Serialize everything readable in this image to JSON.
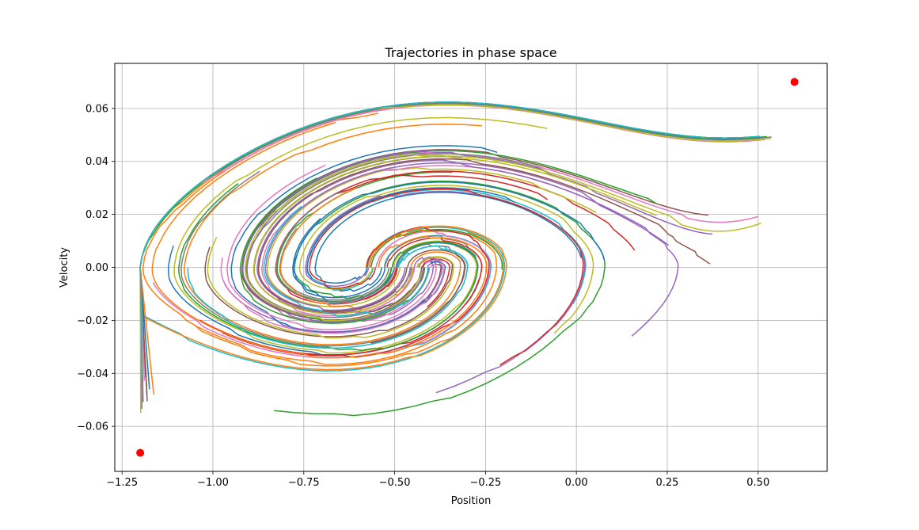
{
  "chart_data": {
    "type": "line",
    "title": "Trajectories in phase space",
    "xlabel": "Position",
    "ylabel": "Velocity",
    "xlim": [
      -1.27,
      0.69
    ],
    "ylim": [
      -0.077,
      0.077
    ],
    "grid": true,
    "xticks": [
      -1.25,
      -1.0,
      -0.75,
      -0.5,
      -0.25,
      0.0,
      0.25,
      0.5
    ],
    "xtick_labels": [
      "−1.25",
      "−1.00",
      "−0.75",
      "−0.50",
      "−0.25",
      "0.00",
      "0.25",
      "0.50"
    ],
    "yticks": [
      -0.06,
      -0.04,
      -0.02,
      0.0,
      0.02,
      0.04,
      0.06
    ],
    "ytick_labels": [
      "−0.06",
      "−0.04",
      "−0.02",
      "0.00",
      "0.02",
      "0.04",
      "0.06"
    ],
    "markers": [
      {
        "x": -1.2,
        "y": -0.07,
        "color": "#ff0000"
      },
      {
        "x": 0.6,
        "y": 0.07,
        "color": "#ff0000"
      }
    ],
    "colors": [
      "#1f77b4",
      "#ff7f0e",
      "#2ca02c",
      "#d62728",
      "#9467bd",
      "#8c564b",
      "#e377c2",
      "#7f7f7f",
      "#bcbd22",
      "#17becf"
    ],
    "trajectory_groups": [
      {
        "type": "spiral",
        "count": 60,
        "start_x": [
          -0.58,
          -0.4
        ],
        "max_amplitude": [
          0.3,
          0.9
        ]
      },
      {
        "type": "escape",
        "count": 10,
        "end_x": [
          0.51,
          0.54
        ],
        "end_y": [
          0.011,
          0.05
        ]
      }
    ]
  }
}
